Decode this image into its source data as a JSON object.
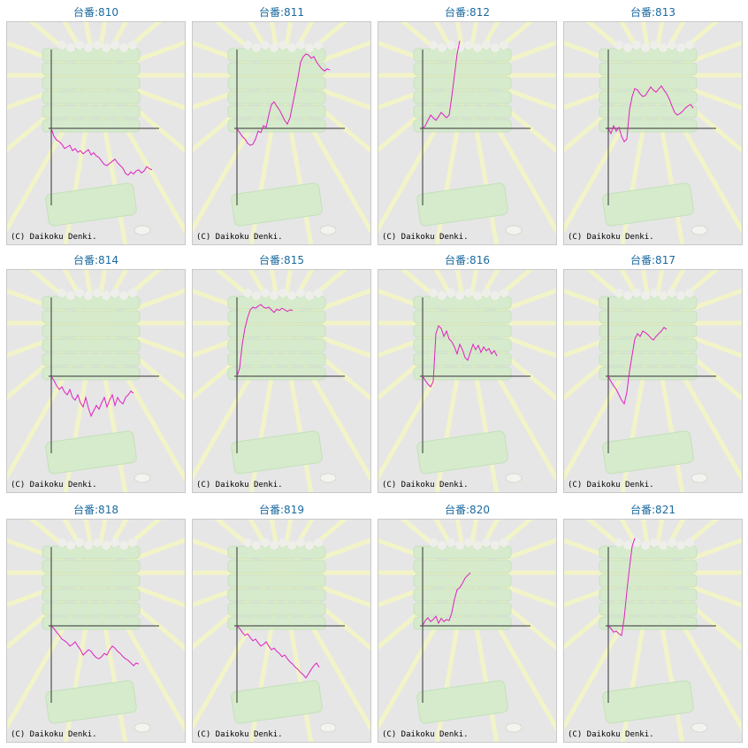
{
  "copyright": "(C) Daikoku Denki.",
  "colors": {
    "line": "#e020c0",
    "axis": "#333333",
    "background": "#e6e6e6",
    "title": "#1a6aa0"
  },
  "chart_data": [
    {
      "type": "line",
      "title": "台番:810",
      "points": [
        [
          0,
          0
        ],
        [
          5,
          -15
        ],
        [
          10,
          -22
        ],
        [
          15,
          -25
        ],
        [
          20,
          -30
        ],
        [
          25,
          -38
        ],
        [
          30,
          -35
        ],
        [
          35,
          -32
        ],
        [
          40,
          -42
        ],
        [
          45,
          -38
        ],
        [
          50,
          -45
        ],
        [
          55,
          -42
        ],
        [
          60,
          -48
        ],
        [
          65,
          -44
        ],
        [
          70,
          -40
        ],
        [
          75,
          -50
        ],
        [
          80,
          -46
        ],
        [
          85,
          -52
        ],
        [
          90,
          -55
        ],
        [
          95,
          -62
        ],
        [
          100,
          -68
        ],
        [
          105,
          -70
        ],
        [
          110,
          -66
        ],
        [
          115,
          -62
        ],
        [
          120,
          -58
        ],
        [
          125,
          -65
        ],
        [
          130,
          -70
        ],
        [
          135,
          -75
        ],
        [
          140,
          -85
        ],
        [
          145,
          -88
        ],
        [
          150,
          -82
        ],
        [
          155,
          -86
        ],
        [
          160,
          -80
        ],
        [
          165,
          -78
        ],
        [
          170,
          -84
        ],
        [
          175,
          -80
        ],
        [
          180,
          -72
        ],
        [
          185,
          -76
        ],
        [
          190,
          -78
        ]
      ]
    },
    {
      "type": "line",
      "title": "台番:811",
      "points": [
        [
          0,
          0
        ],
        [
          5,
          -8
        ],
        [
          10,
          -15
        ],
        [
          15,
          -20
        ],
        [
          20,
          -28
        ],
        [
          25,
          -32
        ],
        [
          30,
          -30
        ],
        [
          35,
          -20
        ],
        [
          40,
          -5
        ],
        [
          45,
          -8
        ],
        [
          50,
          5
        ],
        [
          55,
          2
        ],
        [
          60,
          25
        ],
        [
          65,
          45
        ],
        [
          70,
          50
        ],
        [
          75,
          42
        ],
        [
          80,
          35
        ],
        [
          85,
          25
        ],
        [
          90,
          15
        ],
        [
          95,
          8
        ],
        [
          100,
          20
        ],
        [
          105,
          45
        ],
        [
          110,
          70
        ],
        [
          115,
          95
        ],
        [
          120,
          125
        ],
        [
          125,
          135
        ],
        [
          130,
          140
        ],
        [
          135,
          138
        ],
        [
          140,
          132
        ],
        [
          145,
          135
        ],
        [
          150,
          125
        ],
        [
          155,
          118
        ],
        [
          160,
          112
        ],
        [
          165,
          108
        ],
        [
          170,
          112
        ],
        [
          175,
          110
        ]
      ]
    },
    {
      "type": "line",
      "title": "台番:812",
      "points": [
        [
          0,
          0
        ],
        [
          5,
          5
        ],
        [
          10,
          15
        ],
        [
          15,
          25
        ],
        [
          20,
          20
        ],
        [
          25,
          15
        ],
        [
          30,
          22
        ],
        [
          35,
          30
        ],
        [
          40,
          25
        ],
        [
          45,
          20
        ],
        [
          50,
          25
        ],
        [
          55,
          60
        ],
        [
          60,
          100
        ],
        [
          65,
          140
        ],
        [
          70,
          165
        ]
      ]
    },
    {
      "type": "line",
      "title": "台番:813",
      "points": [
        [
          0,
          0
        ],
        [
          5,
          -10
        ],
        [
          10,
          5
        ],
        [
          15,
          -5
        ],
        [
          20,
          2
        ],
        [
          25,
          -15
        ],
        [
          30,
          -25
        ],
        [
          35,
          -20
        ],
        [
          40,
          35
        ],
        [
          45,
          60
        ],
        [
          50,
          75
        ],
        [
          55,
          72
        ],
        [
          60,
          65
        ],
        [
          65,
          60
        ],
        [
          70,
          62
        ],
        [
          75,
          70
        ],
        [
          80,
          78
        ],
        [
          85,
          72
        ],
        [
          90,
          68
        ],
        [
          95,
          74
        ],
        [
          100,
          80
        ],
        [
          105,
          72
        ],
        [
          110,
          65
        ],
        [
          115,
          55
        ],
        [
          120,
          42
        ],
        [
          125,
          30
        ],
        [
          130,
          25
        ],
        [
          135,
          28
        ],
        [
          140,
          32
        ],
        [
          145,
          38
        ],
        [
          150,
          42
        ],
        [
          155,
          45
        ],
        [
          160,
          38
        ]
      ]
    },
    {
      "type": "line",
      "title": "台番:814",
      "points": [
        [
          0,
          0
        ],
        [
          5,
          -8
        ],
        [
          10,
          -18
        ],
        [
          15,
          -25
        ],
        [
          20,
          -20
        ],
        [
          25,
          -30
        ],
        [
          30,
          -35
        ],
        [
          35,
          -25
        ],
        [
          40,
          -40
        ],
        [
          45,
          -45
        ],
        [
          50,
          -35
        ],
        [
          55,
          -50
        ],
        [
          60,
          -58
        ],
        [
          65,
          -40
        ],
        [
          70,
          -60
        ],
        [
          75,
          -75
        ],
        [
          80,
          -65
        ],
        [
          85,
          -55
        ],
        [
          90,
          -62
        ],
        [
          95,
          -50
        ],
        [
          100,
          -40
        ],
        [
          105,
          -58
        ],
        [
          110,
          -45
        ],
        [
          115,
          -35
        ],
        [
          120,
          -55
        ],
        [
          125,
          -40
        ],
        [
          130,
          -48
        ],
        [
          135,
          -52
        ],
        [
          140,
          -40
        ],
        [
          145,
          -35
        ],
        [
          150,
          -28
        ],
        [
          155,
          -32
        ]
      ]
    },
    {
      "type": "line",
      "title": "台番:815",
      "points": [
        [
          0,
          0
        ],
        [
          5,
          15
        ],
        [
          10,
          60
        ],
        [
          15,
          90
        ],
        [
          20,
          110
        ],
        [
          25,
          125
        ],
        [
          30,
          130
        ],
        [
          35,
          128
        ],
        [
          40,
          132
        ],
        [
          45,
          135
        ],
        [
          50,
          130
        ],
        [
          55,
          128
        ],
        [
          60,
          130
        ],
        [
          65,
          125
        ],
        [
          70,
          120
        ],
        [
          75,
          126
        ],
        [
          80,
          124
        ],
        [
          85,
          128
        ],
        [
          90,
          125
        ],
        [
          95,
          122
        ],
        [
          100,
          125
        ],
        [
          105,
          124
        ]
      ]
    },
    {
      "type": "line",
      "title": "台番:816",
      "points": [
        [
          0,
          0
        ],
        [
          5,
          -8
        ],
        [
          10,
          -15
        ],
        [
          15,
          -20
        ],
        [
          20,
          -10
        ],
        [
          25,
          80
        ],
        [
          30,
          95
        ],
        [
          35,
          90
        ],
        [
          40,
          75
        ],
        [
          45,
          85
        ],
        [
          50,
          70
        ],
        [
          55,
          65
        ],
        [
          60,
          55
        ],
        [
          65,
          42
        ],
        [
          70,
          60
        ],
        [
          75,
          50
        ],
        [
          80,
          35
        ],
        [
          85,
          30
        ],
        [
          90,
          45
        ],
        [
          95,
          60
        ],
        [
          100,
          50
        ],
        [
          105,
          58
        ],
        [
          110,
          45
        ],
        [
          115,
          55
        ],
        [
          120,
          48
        ],
        [
          125,
          52
        ],
        [
          130,
          42
        ],
        [
          135,
          48
        ],
        [
          140,
          38
        ]
      ]
    },
    {
      "type": "line",
      "title": "台番:817",
      "points": [
        [
          0,
          0
        ],
        [
          5,
          -10
        ],
        [
          10,
          -18
        ],
        [
          15,
          -25
        ],
        [
          20,
          -35
        ],
        [
          25,
          -45
        ],
        [
          30,
          -52
        ],
        [
          35,
          -30
        ],
        [
          40,
          10
        ],
        [
          45,
          40
        ],
        [
          50,
          70
        ],
        [
          55,
          80
        ],
        [
          60,
          75
        ],
        [
          65,
          85
        ],
        [
          70,
          82
        ],
        [
          75,
          78
        ],
        [
          80,
          72
        ],
        [
          85,
          68
        ],
        [
          90,
          75
        ],
        [
          95,
          80
        ],
        [
          100,
          85
        ],
        [
          105,
          92
        ],
        [
          110,
          88
        ]
      ]
    },
    {
      "type": "line",
      "title": "台番:818",
      "points": [
        [
          0,
          0
        ],
        [
          5,
          -5
        ],
        [
          10,
          -12
        ],
        [
          15,
          -18
        ],
        [
          20,
          -25
        ],
        [
          25,
          -28
        ],
        [
          30,
          -32
        ],
        [
          35,
          -38
        ],
        [
          40,
          -35
        ],
        [
          45,
          -30
        ],
        [
          50,
          -38
        ],
        [
          55,
          -45
        ],
        [
          60,
          -55
        ],
        [
          65,
          -50
        ],
        [
          70,
          -45
        ],
        [
          75,
          -48
        ],
        [
          80,
          -55
        ],
        [
          85,
          -60
        ],
        [
          90,
          -62
        ],
        [
          95,
          -58
        ],
        [
          100,
          -52
        ],
        [
          105,
          -55
        ],
        [
          110,
          -45
        ],
        [
          115,
          -38
        ],
        [
          120,
          -42
        ],
        [
          125,
          -48
        ],
        [
          130,
          -52
        ],
        [
          135,
          -58
        ],
        [
          140,
          -62
        ],
        [
          145,
          -65
        ],
        [
          150,
          -70
        ],
        [
          155,
          -75
        ],
        [
          160,
          -70
        ],
        [
          165,
          -72
        ]
      ]
    },
    {
      "type": "line",
      "title": "台番:819",
      "points": [
        [
          0,
          0
        ],
        [
          5,
          -5
        ],
        [
          10,
          -12
        ],
        [
          15,
          -18
        ],
        [
          20,
          -15
        ],
        [
          25,
          -22
        ],
        [
          30,
          -28
        ],
        [
          35,
          -25
        ],
        [
          40,
          -32
        ],
        [
          45,
          -38
        ],
        [
          50,
          -35
        ],
        [
          55,
          -30
        ],
        [
          60,
          -38
        ],
        [
          65,
          -45
        ],
        [
          70,
          -42
        ],
        [
          75,
          -48
        ],
        [
          80,
          -52
        ],
        [
          85,
          -58
        ],
        [
          90,
          -55
        ],
        [
          95,
          -62
        ],
        [
          100,
          -68
        ],
        [
          105,
          -72
        ],
        [
          110,
          -78
        ],
        [
          115,
          -82
        ],
        [
          120,
          -88
        ],
        [
          125,
          -92
        ],
        [
          130,
          -98
        ],
        [
          135,
          -90
        ],
        [
          140,
          -82
        ],
        [
          145,
          -75
        ],
        [
          150,
          -70
        ],
        [
          155,
          -78
        ]
      ]
    },
    {
      "type": "line",
      "title": "台番:820",
      "points": [
        [
          0,
          0
        ],
        [
          5,
          10
        ],
        [
          10,
          15
        ],
        [
          15,
          8
        ],
        [
          20,
          12
        ],
        [
          25,
          18
        ],
        [
          30,
          5
        ],
        [
          35,
          14
        ],
        [
          40,
          8
        ],
        [
          45,
          12
        ],
        [
          50,
          10
        ],
        [
          55,
          25
        ],
        [
          60,
          50
        ],
        [
          65,
          68
        ],
        [
          70,
          72
        ],
        [
          75,
          80
        ],
        [
          80,
          90
        ],
        [
          85,
          95
        ],
        [
          90,
          100
        ]
      ]
    },
    {
      "type": "line",
      "title": "台番:821",
      "points": [
        [
          0,
          0
        ],
        [
          5,
          -5
        ],
        [
          10,
          -12
        ],
        [
          15,
          -10
        ],
        [
          20,
          -15
        ],
        [
          25,
          -18
        ],
        [
          30,
          15
        ],
        [
          35,
          65
        ],
        [
          40,
          110
        ],
        [
          45,
          150
        ],
        [
          50,
          165
        ]
      ]
    }
  ]
}
